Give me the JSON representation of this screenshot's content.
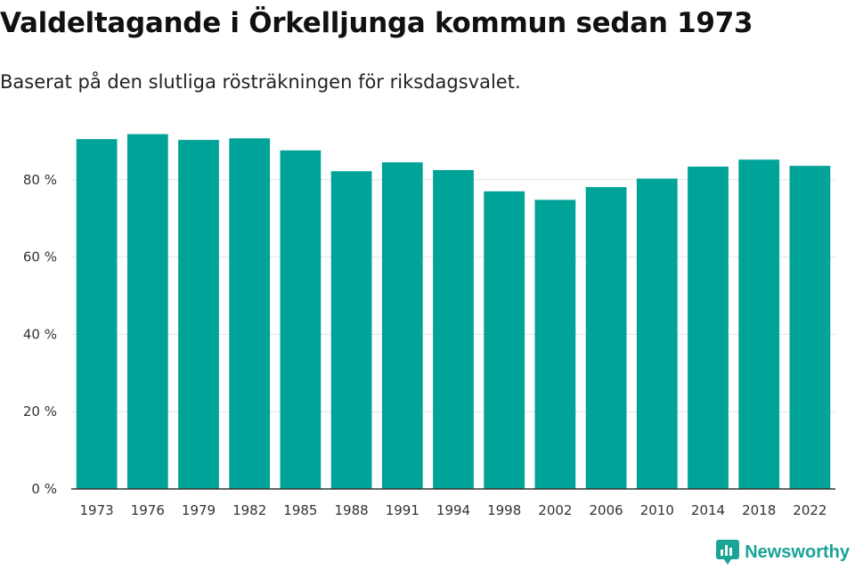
{
  "header": {
    "title": "Valdeltagande i Örkelljunga kommun sedan 1973",
    "subtitle": "Baserat på den slutliga rösträkningen för riksdagsvalet."
  },
  "brand": {
    "name": "Newsworthy",
    "icon": "newsworthy-logo-icon",
    "color": "#1aa397"
  },
  "chart_data": {
    "type": "bar",
    "title": "Valdeltagande i Örkelljunga kommun sedan 1973",
    "subtitle": "Baserat på den slutliga rösträkningen för riksdagsvalet.",
    "xlabel": "",
    "ylabel": "",
    "categories": [
      "1973",
      "1976",
      "1979",
      "1982",
      "1985",
      "1988",
      "1991",
      "1994",
      "1998",
      "2002",
      "2006",
      "2010",
      "2014",
      "2018",
      "2022"
    ],
    "values": [
      90.5,
      91.8,
      90.3,
      90.7,
      87.6,
      82.2,
      84.5,
      82.5,
      77.0,
      74.8,
      78.1,
      80.3,
      83.4,
      85.2,
      83.6
    ],
    "ylim": [
      0,
      100
    ],
    "yticks": [
      0,
      20,
      40,
      60,
      80
    ],
    "ytick_labels": [
      "0 %",
      "20 %",
      "40 %",
      "60 %",
      "80 %"
    ],
    "grid": true,
    "legend": "none",
    "bar_color": "#00a398"
  }
}
